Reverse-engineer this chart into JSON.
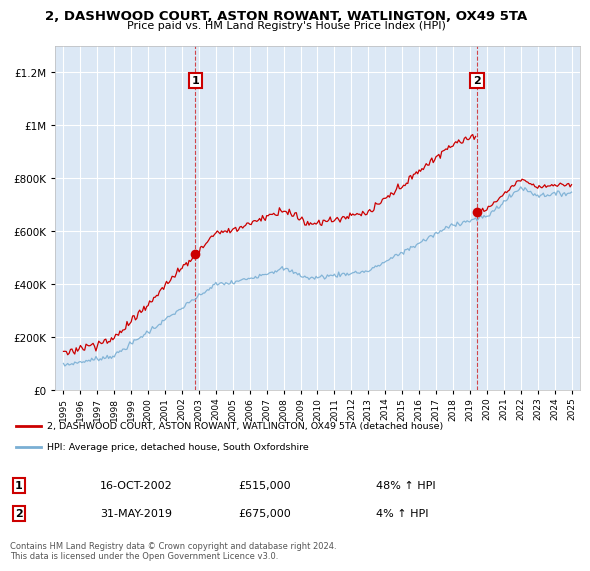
{
  "title": "2, DASHWOOD COURT, ASTON ROWANT, WATLINGTON, OX49 5TA",
  "subtitle": "Price paid vs. HM Land Registry's House Price Index (HPI)",
  "red_label": "2, DASHWOOD COURT, ASTON ROWANT, WATLINGTON, OX49 5TA (detached house)",
  "blue_label": "HPI: Average price, detached house, South Oxfordshire",
  "sale1_date": "16-OCT-2002",
  "sale1_price": 515000,
  "sale1_hpi": "48% ↑ HPI",
  "sale2_date": "31-MAY-2019",
  "sale2_price": 675000,
  "sale2_hpi": "4% ↑ HPI",
  "footer": "Contains HM Land Registry data © Crown copyright and database right 2024.\nThis data is licensed under the Open Government Licence v3.0.",
  "ylim_min": 0,
  "ylim_max": 1300000,
  "background_color": "#ffffff",
  "plot_bg_color": "#dce8f5",
  "grid_color": "#ffffff",
  "red_color": "#cc0000",
  "blue_color": "#7aafd4",
  "sale1_year": 2002.79,
  "sale2_year": 2019.41,
  "xlim_min": 1994.5,
  "xlim_max": 2025.5
}
